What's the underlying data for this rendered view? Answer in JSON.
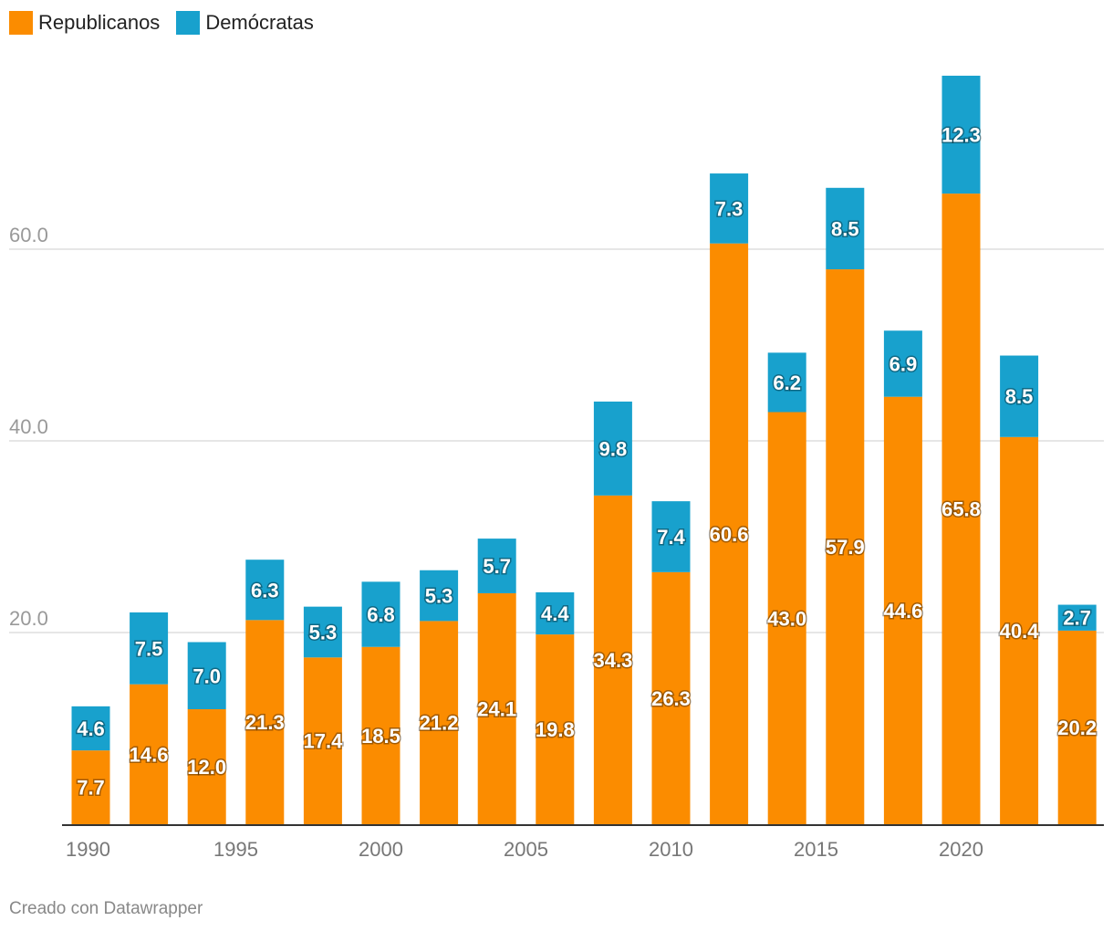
{
  "legend": [
    {
      "label": "Republicanos",
      "color": "#fb8c00"
    },
    {
      "label": "Demócratas",
      "color": "#18a1cd"
    }
  ],
  "footer": {
    "credit": "Creado con Datawrapper"
  },
  "chart_data": {
    "type": "bar",
    "stacked": true,
    "categories": [
      "1990",
      "1992",
      "1994",
      "1996",
      "1998",
      "2000",
      "2002",
      "2004",
      "2006",
      "2008",
      "2010",
      "2012",
      "2014",
      "2016",
      "2018",
      "2020",
      "2022",
      "2024"
    ],
    "series": [
      {
        "name": "Republicanos",
        "color": "#fb8c00",
        "values": [
          7.7,
          14.6,
          12.0,
          21.3,
          17.4,
          18.5,
          21.2,
          24.1,
          19.8,
          34.3,
          26.3,
          60.6,
          43.0,
          57.9,
          44.6,
          65.8,
          40.4,
          20.2
        ]
      },
      {
        "name": "Demócratas",
        "color": "#18a1cd",
        "values": [
          4.6,
          7.5,
          7.0,
          6.3,
          5.3,
          6.8,
          5.3,
          5.7,
          4.4,
          9.8,
          7.4,
          7.3,
          6.2,
          8.5,
          6.9,
          12.3,
          8.5,
          2.7
        ]
      }
    ],
    "y_ticks": [
      "20.0",
      "40.0",
      "60.0"
    ],
    "x_tick_labels": [
      "1990",
      "1995",
      "2000",
      "2005",
      "2010",
      "2015",
      "2020"
    ],
    "ylim": [
      0,
      80
    ],
    "grid": true,
    "legend_position": "top-left",
    "title": "",
    "xlabel": "",
    "ylabel": ""
  }
}
